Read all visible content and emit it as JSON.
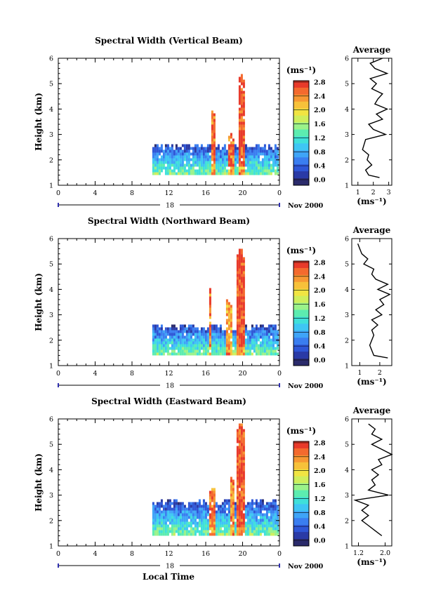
{
  "date_label": "Nov 2000",
  "day_label": "18",
  "xaxis_label": "Local Time",
  "colorbar_unit": "(ms⁻¹)",
  "avg_unit": "(ms⁻¹)",
  "avg_title": "Average",
  "colormap": [
    "#2b2b6b",
    "#2a3aa6",
    "#2e56d6",
    "#3a7ef0",
    "#3fa4f7",
    "#3ec6f4",
    "#3fe0da",
    "#5cecb0",
    "#9af28a",
    "#cfee5c",
    "#f1e442",
    "#f7c13a",
    "#f79833",
    "#f46a2e",
    "#e83a2a"
  ],
  "panels": [
    {
      "title": "Spectral Width (Vertical Beam)",
      "ylabel": "Height (km)",
      "colorbar_ticks": [
        "0.0",
        "0.4",
        "0.8",
        "1.2",
        "1.6",
        "2.0",
        "2.4",
        "2.8"
      ],
      "avg_ticks": [
        "1",
        "2",
        "3"
      ],
      "avg_range": [
        0.6,
        3.2
      ],
      "chart_data": {
        "type": "heatmap",
        "x_label": "Local Time",
        "x_range": [
          0,
          24
        ],
        "x_ticks": [
          "0",
          "4",
          "8",
          "12",
          "16",
          "20",
          "0"
        ],
        "y_range": [
          1,
          6
        ],
        "y_ticks": [
          "1",
          "2",
          "3",
          "4",
          "5",
          "6"
        ],
        "y_label": "Height (km)",
        "color_range": [
          0.0,
          3.0
        ],
        "data_start_hour": 10.2,
        "base_top_km": 2.6,
        "base_bottom_km": 1.4,
        "plumes": [
          {
            "hour": 16.7,
            "top_km": 4.1,
            "width_h": 0.5,
            "peak": 2.8
          },
          {
            "hour": 18.7,
            "top_km": 3.0,
            "width_h": 0.8,
            "peak": 2.8
          },
          {
            "hour": 19.8,
            "top_km": 5.4,
            "width_h": 0.9,
            "peak": 3.0
          }
        ],
        "average_profile": {
          "height_km": [
            1.3,
            1.4,
            1.6,
            1.8,
            2.0,
            2.2,
            2.4,
            2.6,
            2.8,
            3.0,
            3.2,
            3.4,
            3.6,
            3.8,
            4.0,
            4.2,
            4.4,
            4.6,
            4.8,
            5.0,
            5.2,
            5.4,
            5.6,
            5.8,
            6.0
          ],
          "value": [
            2.4,
            1.7,
            1.5,
            1.9,
            1.6,
            1.7,
            1.3,
            1.4,
            1.5,
            2.8,
            2.0,
            1.7,
            2.6,
            2.2,
            2.9,
            2.1,
            2.3,
            2.6,
            1.9,
            2.2,
            1.8,
            2.9,
            2.1,
            1.8,
            2.6
          ]
        }
      }
    },
    {
      "title": "Spectral Width (Northward Beam)",
      "ylabel": "Height (km)",
      "colorbar_ticks": [
        "0.0",
        "0.4",
        "0.8",
        "1.2",
        "1.6",
        "2.0",
        "2.4",
        "2.8"
      ],
      "avg_ticks": [
        "1",
        "2"
      ],
      "avg_range": [
        0.6,
        2.6
      ],
      "chart_data": {
        "type": "heatmap",
        "x_label": "Local Time",
        "x_range": [
          0,
          24
        ],
        "x_ticks": [
          "0",
          "4",
          "8",
          "12",
          "16",
          "20",
          "0"
        ],
        "y_range": [
          1,
          6
        ],
        "y_ticks": [
          "1",
          "2",
          "3",
          "4",
          "5",
          "6"
        ],
        "y_label": "Height (km)",
        "color_range": [
          0.0,
          3.0
        ],
        "data_start_hour": 10.2,
        "base_top_km": 2.6,
        "base_bottom_km": 1.4,
        "plumes": [
          {
            "hour": 16.4,
            "top_km": 4.3,
            "width_h": 0.4,
            "peak": 2.8
          },
          {
            "hour": 18.4,
            "top_km": 3.6,
            "width_h": 0.7,
            "peak": 2.6
          },
          {
            "hour": 19.7,
            "top_km": 5.6,
            "width_h": 0.9,
            "peak": 3.0
          }
        ],
        "average_profile": {
          "height_km": [
            1.3,
            1.4,
            1.6,
            1.8,
            2.0,
            2.2,
            2.4,
            2.6,
            2.8,
            3.0,
            3.2,
            3.4,
            3.6,
            3.8,
            4.0,
            4.2,
            4.4,
            4.6,
            4.8,
            5.0,
            5.2,
            5.4,
            5.6,
            5.8
          ],
          "value": [
            2.4,
            1.7,
            1.6,
            1.5,
            1.6,
            1.7,
            1.6,
            1.9,
            1.6,
            2.1,
            1.8,
            2.2,
            2.0,
            2.5,
            1.9,
            2.4,
            1.8,
            1.6,
            1.7,
            1.2,
            1.4,
            1.1,
            1.0,
            0.9
          ]
        }
      }
    },
    {
      "title": "Spectral Width (Eastward Beam)",
      "ylabel": "Height (km)",
      "colorbar_ticks": [
        "0.0",
        "0.4",
        "0.8",
        "1.2",
        "1.6",
        "2.0",
        "2.4",
        "2.8"
      ],
      "avg_ticks": [
        "1.2",
        "2.0"
      ],
      "avg_range": [
        1.0,
        2.2
      ],
      "chart_data": {
        "type": "heatmap",
        "x_label": "Local Time",
        "x_range": [
          0,
          24
        ],
        "x_ticks": [
          "0",
          "4",
          "8",
          "12",
          "16",
          "20",
          "0"
        ],
        "y_range": [
          1,
          6
        ],
        "y_ticks": [
          "1",
          "2",
          "3",
          "4",
          "5",
          "6"
        ],
        "y_label": "Height (km)",
        "color_range": [
          0.0,
          3.0
        ],
        "data_start_hour": 10.2,
        "base_top_km": 2.8,
        "base_bottom_km": 1.4,
        "plumes": [
          {
            "hour": 16.6,
            "top_km": 3.3,
            "width_h": 0.6,
            "peak": 2.8
          },
          {
            "hour": 18.8,
            "top_km": 3.7,
            "width_h": 0.6,
            "peak": 2.7
          },
          {
            "hour": 19.6,
            "top_km": 5.8,
            "width_h": 0.9,
            "peak": 3.0
          }
        ],
        "average_profile": {
          "height_km": [
            1.4,
            1.6,
            1.8,
            2.0,
            2.2,
            2.4,
            2.6,
            2.8,
            3.0,
            3.2,
            3.4,
            3.6,
            3.8,
            4.0,
            4.2,
            4.4,
            4.6,
            4.8,
            5.0,
            5.2,
            5.4,
            5.6,
            5.8
          ],
          "value": [
            1.9,
            1.7,
            1.5,
            1.3,
            1.5,
            1.3,
            1.5,
            1.1,
            2.1,
            1.5,
            1.7,
            1.6,
            1.8,
            1.6,
            1.9,
            1.8,
            2.2,
            1.9,
            1.6,
            1.9,
            1.6,
            1.7,
            1.5
          ]
        }
      }
    }
  ]
}
